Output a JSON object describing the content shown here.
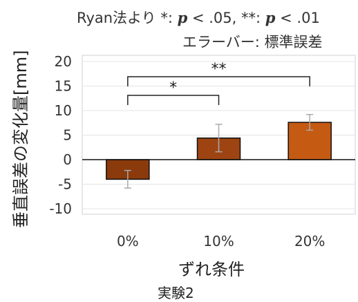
{
  "annotations": {
    "method_prefix": "Ryan法より",
    "sig1_mark": "*:",
    "sig1_p": "p",
    "sig1_thresh": "< .05,",
    "sig2_mark": "**:",
    "sig2_p": "p",
    "sig2_thresh": "< .01",
    "error_bar_note": "エラーバー: 標準誤差"
  },
  "caption": "実験2",
  "chart_data": {
    "type": "bar",
    "title": "",
    "xlabel": "ずれ条件",
    "ylabel": "垂直誤差の変化量[mm]",
    "categories": [
      "0%",
      "10%",
      "20%"
    ],
    "values": [
      -4.0,
      4.4,
      7.6
    ],
    "errors": [
      1.8,
      2.8,
      1.6
    ],
    "ylim": [
      -10,
      20
    ],
    "yticks": [
      -10,
      -5,
      0,
      5,
      10,
      15,
      20
    ],
    "grid": true,
    "bar_colors": [
      "#8b3a0c",
      "#9e4412",
      "#c55a13"
    ],
    "bar_edge_color": "#111111",
    "error_bar_color": "#aaaaaa",
    "significance": [
      {
        "from": 0,
        "to": 1,
        "label": "*"
      },
      {
        "from": 0,
        "to": 2,
        "label": "**"
      }
    ]
  }
}
